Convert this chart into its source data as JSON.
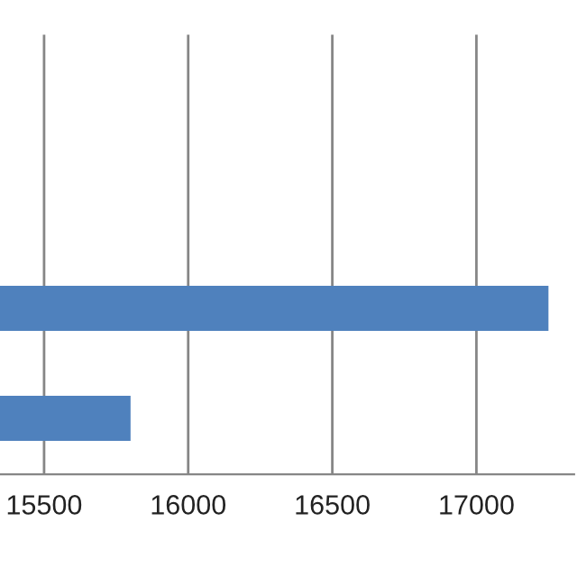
{
  "chart_data": {
    "type": "bar",
    "orientation": "horizontal",
    "categories": [
      null,
      null
    ],
    "values": [
      17250,
      15800
    ],
    "color": "#4f81bd",
    "xlim": [
      15347,
      17339
    ],
    "xticks": [
      15500,
      16000,
      16500,
      17000
    ],
    "grid": "x",
    "legend": false
  }
}
